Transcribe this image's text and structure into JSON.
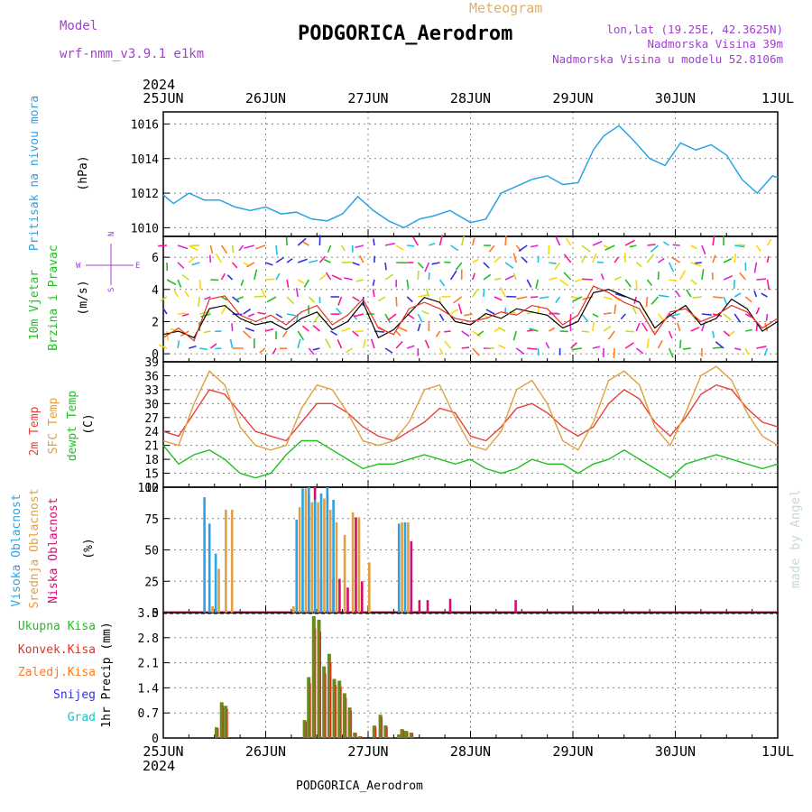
{
  "header": {
    "model_label": "Model",
    "model_value": "wrf-nmm_v3.9.1 e1km",
    "title": "PODGORICA_Aerodrom",
    "subtitle": "Meteogram",
    "lonlat": "lon,lat (19.25E, 42.3625N)",
    "elevation": "Nadmorska Visina 39m",
    "model_elevation": "Nadmorska Visina u modelu 52.8106m",
    "watermark": "made by Angel",
    "footer": "PODGORICA_Aerodrom",
    "year": "2024"
  },
  "dates": [
    "25JUN",
    "26JUN",
    "27JUN",
    "28JUN",
    "29JUN",
    "30JUN",
    "1JUL"
  ],
  "colors": {
    "pressure": "#2aa3e6",
    "wind_speed": "#000000",
    "gust": "#e83020",
    "temp2m": "#e8403a",
    "sfc_temp": "#e0a040",
    "dewpt": "#20c020",
    "high_cloud": "#2aa3e6",
    "mid_cloud": "#e0a040",
    "low_cloud": "#d01070",
    "total_precip": "#20c020",
    "conv_precip": "#e83020",
    "resolved_precip": "#ff7a20",
    "snow": "#3030e0",
    "hail": "#20c0c0",
    "wind_label": "#20c020",
    "dir_label": "#a040d0"
  },
  "panels": {
    "pressure": {
      "label": "Pritisak na nivou mora",
      "unit": "(hPa)"
    },
    "wind": {
      "label1": "10m Vjetar",
      "label2": "Brzina i Pravac",
      "unit": "(m/s)",
      "compass_n": "N",
      "compass_s": "S",
      "compass_w": "W",
      "compass_e": "E"
    },
    "temp": {
      "label1": "2m Temp",
      "label2": "SFC Temp",
      "label3": "dewpt Temp",
      "unit": "(C)"
    },
    "cloud": {
      "label1": "Visoka Oblacnost",
      "label2": "Srednja Oblacnost",
      "label3": "Niska Oblacnost",
      "unit": "(%)"
    },
    "precip": {
      "label1": "Ukupna Kisa",
      "label2": "Konvek.Kisa",
      "label3": "Zaledj.Kisa",
      "label4": "Snijeg",
      "label5": "Grad",
      "unit": "1hr Precip (mm)"
    }
  },
  "chart_data": [
    {
      "type": "line",
      "name": "pressure",
      "ylabel": "Pritisak na nivou mora (hPa)",
      "ylim": [
        1009.5,
        1016.7
      ],
      "yticks": [
        1010,
        1012,
        1014,
        1016
      ],
      "x_days": [
        0,
        0.1,
        0.25,
        0.4,
        0.55,
        0.7,
        0.85,
        1.0,
        1.15,
        1.3,
        1.45,
        1.6,
        1.75,
        1.9,
        2.05,
        2.2,
        2.35,
        2.5,
        2.65,
        2.8,
        3.0,
        3.15,
        3.3,
        3.45,
        3.6,
        3.75,
        3.9,
        4.05,
        4.2,
        4.3,
        4.45,
        4.6,
        4.75,
        4.9,
        5.05,
        5.2,
        5.35,
        5.5,
        5.65,
        5.8,
        5.95,
        6.0
      ],
      "series": [
        {
          "values": [
            1011.9,
            1011.4,
            1012.0,
            1011.6,
            1011.6,
            1011.2,
            1011.0,
            1011.2,
            1010.8,
            1010.9,
            1010.5,
            1010.4,
            1010.8,
            1011.8,
            1011.0,
            1010.4,
            1010.0,
            1010.5,
            1010.7,
            1011.0,
            1010.3,
            1010.5,
            1012.0,
            1012.4,
            1012.8,
            1013.0,
            1012.5,
            1012.6,
            1014.5,
            1015.3,
            1015.9,
            1015.0,
            1014.0,
            1013.6,
            1014.9,
            1014.5,
            1014.8,
            1014.2,
            1012.8,
            1012.0,
            1013.0,
            1012.9
          ]
        }
      ]
    },
    {
      "type": "line",
      "name": "wind",
      "ylabel": "10m Vjetar Brzina i Pravac (m/s)",
      "ylim": [
        -0.5,
        7.3
      ],
      "yticks": [
        0,
        2,
        4,
        6
      ],
      "x_days": [
        0,
        0.15,
        0.3,
        0.45,
        0.6,
        0.75,
        0.9,
        1.05,
        1.2,
        1.35,
        1.5,
        1.65,
        1.8,
        1.95,
        2.1,
        2.25,
        2.4,
        2.55,
        2.7,
        2.85,
        3.0,
        3.15,
        3.3,
        3.45,
        3.6,
        3.75,
        3.9,
        4.05,
        4.2,
        4.35,
        4.5,
        4.65,
        4.8,
        4.95,
        5.1,
        5.25,
        5.4,
        5.55,
        5.7,
        5.85,
        6.0
      ],
      "series": [
        {
          "values": [
            1.2,
            1.4,
            1.0,
            2.8,
            3.0,
            2.2,
            1.8,
            2.0,
            1.5,
            2.2,
            2.6,
            1.5,
            2.0,
            3.2,
            1.0,
            1.5,
            2.5,
            3.5,
            3.2,
            2.0,
            1.8,
            2.5,
            2.2,
            2.8,
            2.6,
            2.4,
            1.6,
            2.0,
            3.8,
            4.0,
            3.6,
            3.2,
            1.6,
            2.4,
            3.0,
            1.8,
            2.2,
            3.4,
            2.8,
            1.4,
            2.0
          ]
        },
        {
          "values": [
            1.0,
            1.6,
            0.8,
            3.4,
            3.6,
            2.4,
            2.0,
            2.4,
            1.8,
            2.6,
            3.0,
            1.8,
            2.4,
            3.4,
            1.6,
            1.2,
            2.8,
            3.2,
            2.8,
            2.2,
            2.0,
            2.2,
            2.6,
            2.4,
            3.0,
            2.8,
            1.8,
            2.4,
            4.2,
            3.8,
            3.2,
            2.8,
            1.2,
            2.6,
            2.8,
            2.0,
            2.4,
            3.0,
            2.6,
            1.6,
            2.2
          ]
        }
      ]
    },
    {
      "type": "line",
      "name": "temperature",
      "ylabel": "Temp (C)",
      "ylim": [
        12,
        39
      ],
      "yticks": [
        12,
        15,
        18,
        21,
        24,
        27,
        30,
        33,
        36,
        39
      ],
      "x_days": [
        0,
        0.15,
        0.3,
        0.45,
        0.6,
        0.75,
        0.9,
        1.05,
        1.2,
        1.35,
        1.5,
        1.65,
        1.8,
        1.95,
        2.1,
        2.25,
        2.4,
        2.55,
        2.7,
        2.85,
        3.0,
        3.15,
        3.3,
        3.45,
        3.6,
        3.75,
        3.9,
        4.05,
        4.2,
        4.35,
        4.5,
        4.65,
        4.8,
        4.95,
        5.1,
        5.25,
        5.4,
        5.55,
        5.7,
        5.85,
        6.0
      ],
      "series": [
        {
          "values": [
            24,
            23,
            28,
            33,
            32,
            28,
            24,
            23,
            22,
            26,
            30,
            30,
            28,
            25,
            23,
            22,
            24,
            26,
            29,
            28,
            23,
            22,
            25,
            29,
            30,
            28,
            25,
            23,
            25,
            30,
            33,
            31,
            26,
            23,
            27,
            32,
            34,
            33,
            29,
            26,
            25
          ]
        },
        {
          "values": [
            22,
            21,
            30,
            37,
            34,
            25,
            21,
            20,
            21,
            29,
            34,
            33,
            28,
            22,
            21,
            22,
            26,
            33,
            34,
            27,
            21,
            20,
            24,
            33,
            35,
            30,
            22,
            20,
            26,
            35,
            37,
            34,
            25,
            21,
            28,
            36,
            38,
            35,
            28,
            23,
            21
          ]
        },
        {
          "values": [
            21,
            17,
            19,
            20,
            18,
            15,
            14,
            15,
            19,
            22,
            22,
            20,
            18,
            16,
            17,
            17,
            18,
            19,
            18,
            17,
            18,
            16,
            15,
            16,
            18,
            17,
            17,
            15,
            17,
            18,
            20,
            18,
            16,
            14,
            17,
            18,
            19,
            18,
            17,
            16,
            17
          ]
        }
      ]
    },
    {
      "type": "bar",
      "name": "cloud",
      "ylabel": "Oblacnost (%)",
      "ylim": [
        0,
        100
      ],
      "yticks": [
        0,
        25,
        50,
        75,
        100
      ],
      "x_days": [
        0.42,
        0.47,
        0.53,
        0.6,
        0.66,
        1.26,
        1.32,
        1.38,
        1.44,
        1.5,
        1.56,
        1.62,
        1.68,
        1.76,
        1.84,
        1.9,
        2.0,
        2.12,
        2.26,
        2.32,
        2.38,
        2.46,
        2.54,
        2.76,
        3.4
      ],
      "series": [
        {
          "name": "Visoka Oblacnost",
          "values": [
            92,
            71,
            47,
            0,
            0,
            0,
            74,
            99,
            100,
            90,
            95,
            100,
            90,
            0,
            0,
            0,
            0,
            0,
            0,
            71,
            72,
            0,
            0,
            0,
            0
          ]
        },
        {
          "name": "Srednja Oblacnost",
          "values": [
            0,
            5,
            35,
            82,
            82,
            5,
            84,
            99,
            88,
            88,
            91,
            82,
            72,
            62,
            80,
            76,
            40,
            0,
            0,
            72,
            72,
            0,
            0,
            0,
            0
          ]
        },
        {
          "name": "Niska Oblacnost",
          "values": [
            0,
            0,
            0,
            0,
            0,
            0,
            0,
            95,
            100,
            27,
            94,
            27,
            27,
            20,
            76,
            25,
            0,
            0,
            0,
            0,
            57,
            10,
            10,
            11,
            10
          ]
        }
      ]
    },
    {
      "type": "bar",
      "name": "precip",
      "ylabel": "1hr Precip (mm)",
      "ylim": [
        0,
        3.5
      ],
      "yticks": [
        0,
        0.7,
        1.4,
        2.1,
        2.8,
        3.5
      ],
      "x_days": [
        0.52,
        0.57,
        0.61,
        1.38,
        1.42,
        1.47,
        1.52,
        1.57,
        1.62,
        1.67,
        1.72,
        1.77,
        1.82,
        1.87,
        1.92,
        2.06,
        2.12,
        2.17,
        2.22,
        2.3,
        2.33,
        2.37,
        2.42
      ],
      "series": [
        {
          "name": "Ukupna Kisa",
          "values": [
            0.3,
            1.0,
            0.9,
            0.5,
            1.7,
            3.4,
            3.3,
            2.0,
            2.35,
            1.65,
            1.6,
            1.25,
            0.85,
            0.15,
            0.05,
            0.35,
            0.65,
            0.35,
            0.02,
            0.1,
            0.25,
            0.2,
            0.15
          ]
        }
      ]
    }
  ]
}
